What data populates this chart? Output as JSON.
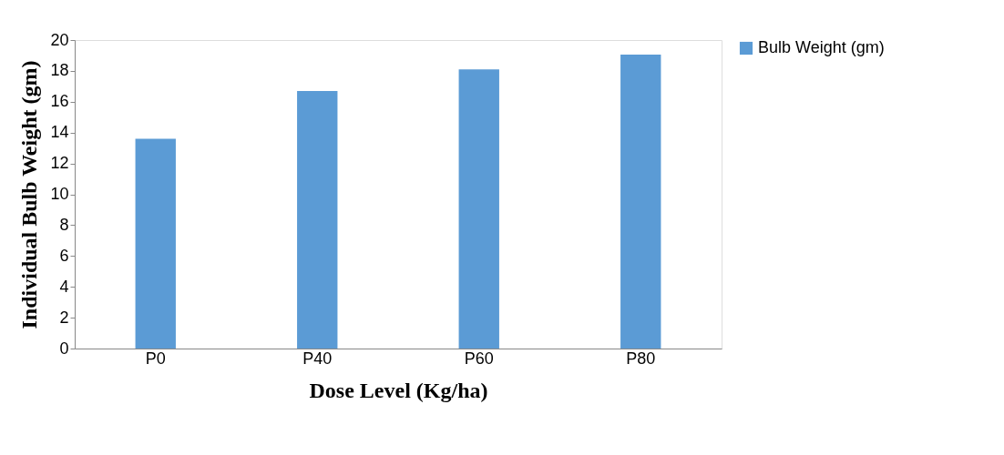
{
  "chart_data": {
    "type": "bar",
    "xlabel": "Dose Level (Kg/ha)",
    "ylabel": "Individual Bulb Weight (gm)",
    "categories": [
      "P0",
      "P40",
      "P60",
      "P80"
    ],
    "series": [
      {
        "name": "Bulb Weight (gm)",
        "color": "#5b9bd5",
        "values": [
          13.6,
          16.7,
          18.1,
          19.05
        ]
      }
    ],
    "ylim": [
      0,
      20
    ],
    "yticks": [
      0,
      2,
      4,
      6,
      8,
      10,
      12,
      14,
      16,
      18,
      20
    ],
    "grid": false,
    "legend": "right"
  }
}
